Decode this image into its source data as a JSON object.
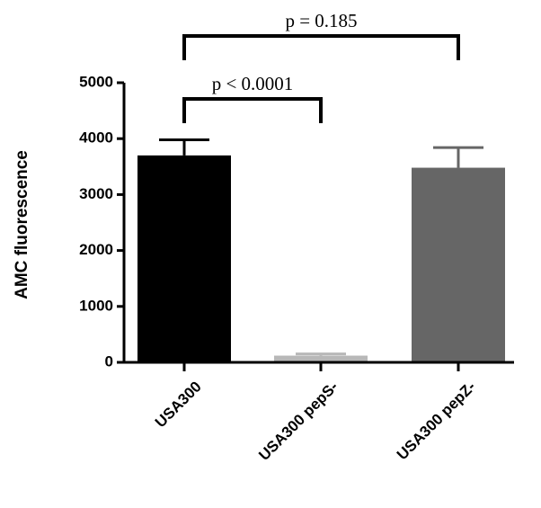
{
  "chart_data": {
    "type": "bar",
    "y_label": "AMC fluorescence",
    "categories": [
      "USA300",
      "USA300 pepS-",
      "USA300 pepZ-"
    ],
    "values": [
      3700,
      120,
      3480
    ],
    "errors": [
      280,
      30,
      360
    ],
    "colors": [
      "#000000",
      "#b8b8b8",
      "#666666"
    ],
    "ylim": [
      0,
      5000
    ],
    "yticks": [
      0,
      1000,
      2000,
      3000,
      4000,
      5000
    ],
    "comparisons": [
      {
        "label": "p < 0.0001",
        "groups": [
          "USA300",
          "USA300 pepS-"
        ]
      },
      {
        "label": "p = 0.185",
        "groups": [
          "USA300",
          "USA300 pepZ-"
        ]
      }
    ]
  }
}
